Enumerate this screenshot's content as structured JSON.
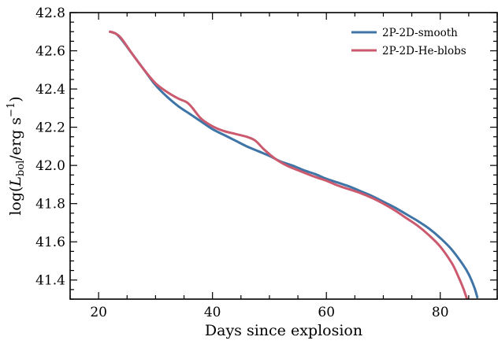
{
  "chart_data": {
    "type": "line",
    "xlabel": "Days since explosion",
    "ylabel_parts": {
      "prefix": "log(",
      "symbol": "L",
      "subscript": "bol",
      "unit": "/erg s",
      "exponent": "−1",
      "suffix": ")"
    },
    "xlim": [
      15,
      90
    ],
    "ylim": [
      41.3,
      42.8
    ],
    "xticks": [
      20,
      40,
      60,
      80
    ],
    "xtick_labels": [
      "20",
      "40",
      "60",
      "80"
    ],
    "yticks": [
      41.4,
      41.6,
      41.8,
      42.0,
      42.2,
      42.4,
      42.6,
      42.8
    ],
    "ytick_labels": [
      "41.4",
      "41.6",
      "41.8",
      "42.0",
      "42.2",
      "42.4",
      "42.6",
      "42.8"
    ],
    "grid": false,
    "legend_position": "top-right",
    "series": [
      {
        "name": "2P-2D-smooth",
        "color": "#3f74a6",
        "x": [
          22.0,
          23.0,
          24.0,
          26.0,
          28.0,
          30.0,
          32.0,
          34.0,
          36.0,
          38.0,
          40.0,
          42.0,
          44.0,
          46.0,
          48.0,
          50.0,
          52.0,
          54.0,
          56.0,
          58.0,
          60.0,
          62.0,
          64.0,
          66.0,
          68.0,
          70.0,
          72.0,
          74.0,
          76.0,
          78.0,
          80.0,
          82.0,
          84.0,
          85.0,
          86.0,
          86.5
        ],
        "y": [
          42.7,
          42.69,
          42.66,
          42.58,
          42.5,
          42.42,
          42.36,
          42.31,
          42.27,
          42.23,
          42.19,
          42.16,
          42.13,
          42.1,
          42.075,
          42.05,
          42.02,
          42.0,
          41.975,
          41.955,
          41.93,
          41.91,
          41.89,
          41.865,
          41.84,
          41.81,
          41.78,
          41.745,
          41.71,
          41.67,
          41.62,
          41.56,
          41.48,
          41.43,
          41.36,
          41.31
        ]
      },
      {
        "name": "2P-2D-He-blobs",
        "color": "#cc5a6e",
        "x": [
          22.0,
          23.0,
          24.0,
          26.0,
          28.0,
          30.0,
          32.0,
          34.0,
          35.5,
          36.5,
          38.0,
          40.0,
          42.0,
          44.0,
          46.0,
          47.5,
          49.0,
          51.0,
          53.0,
          55.0,
          58.0,
          60.0,
          62.0,
          64.0,
          66.0,
          68.0,
          70.0,
          72.0,
          74.0,
          76.0,
          78.0,
          80.0,
          82.0,
          83.0,
          84.0,
          84.7
        ],
        "y": [
          42.7,
          42.69,
          42.665,
          42.58,
          42.5,
          42.43,
          42.385,
          42.35,
          42.33,
          42.3,
          42.245,
          42.205,
          42.18,
          42.165,
          42.15,
          42.13,
          42.085,
          42.035,
          42.0,
          41.975,
          41.94,
          41.92,
          41.895,
          41.875,
          41.855,
          41.83,
          41.8,
          41.765,
          41.725,
          41.685,
          41.635,
          41.575,
          41.49,
          41.43,
          41.36,
          41.3
        ]
      }
    ]
  }
}
